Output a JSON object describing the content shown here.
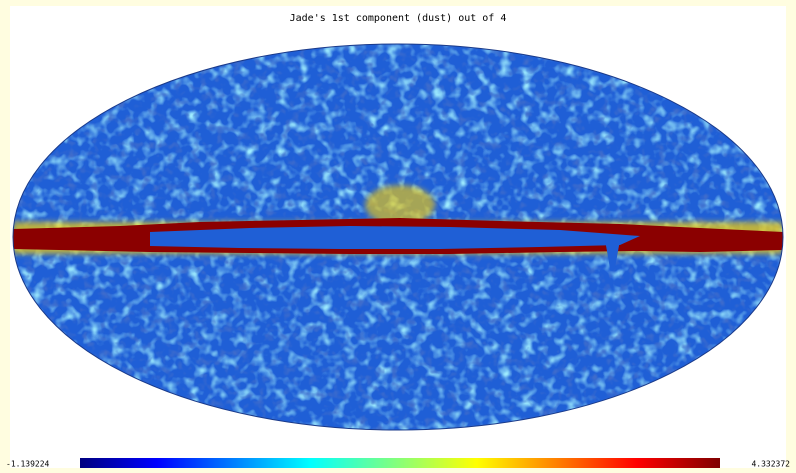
{
  "title": "Jade's 1st component (dust) out of 4",
  "colorbar": {
    "min": -1.139224,
    "max": 4.332372
  }
}
